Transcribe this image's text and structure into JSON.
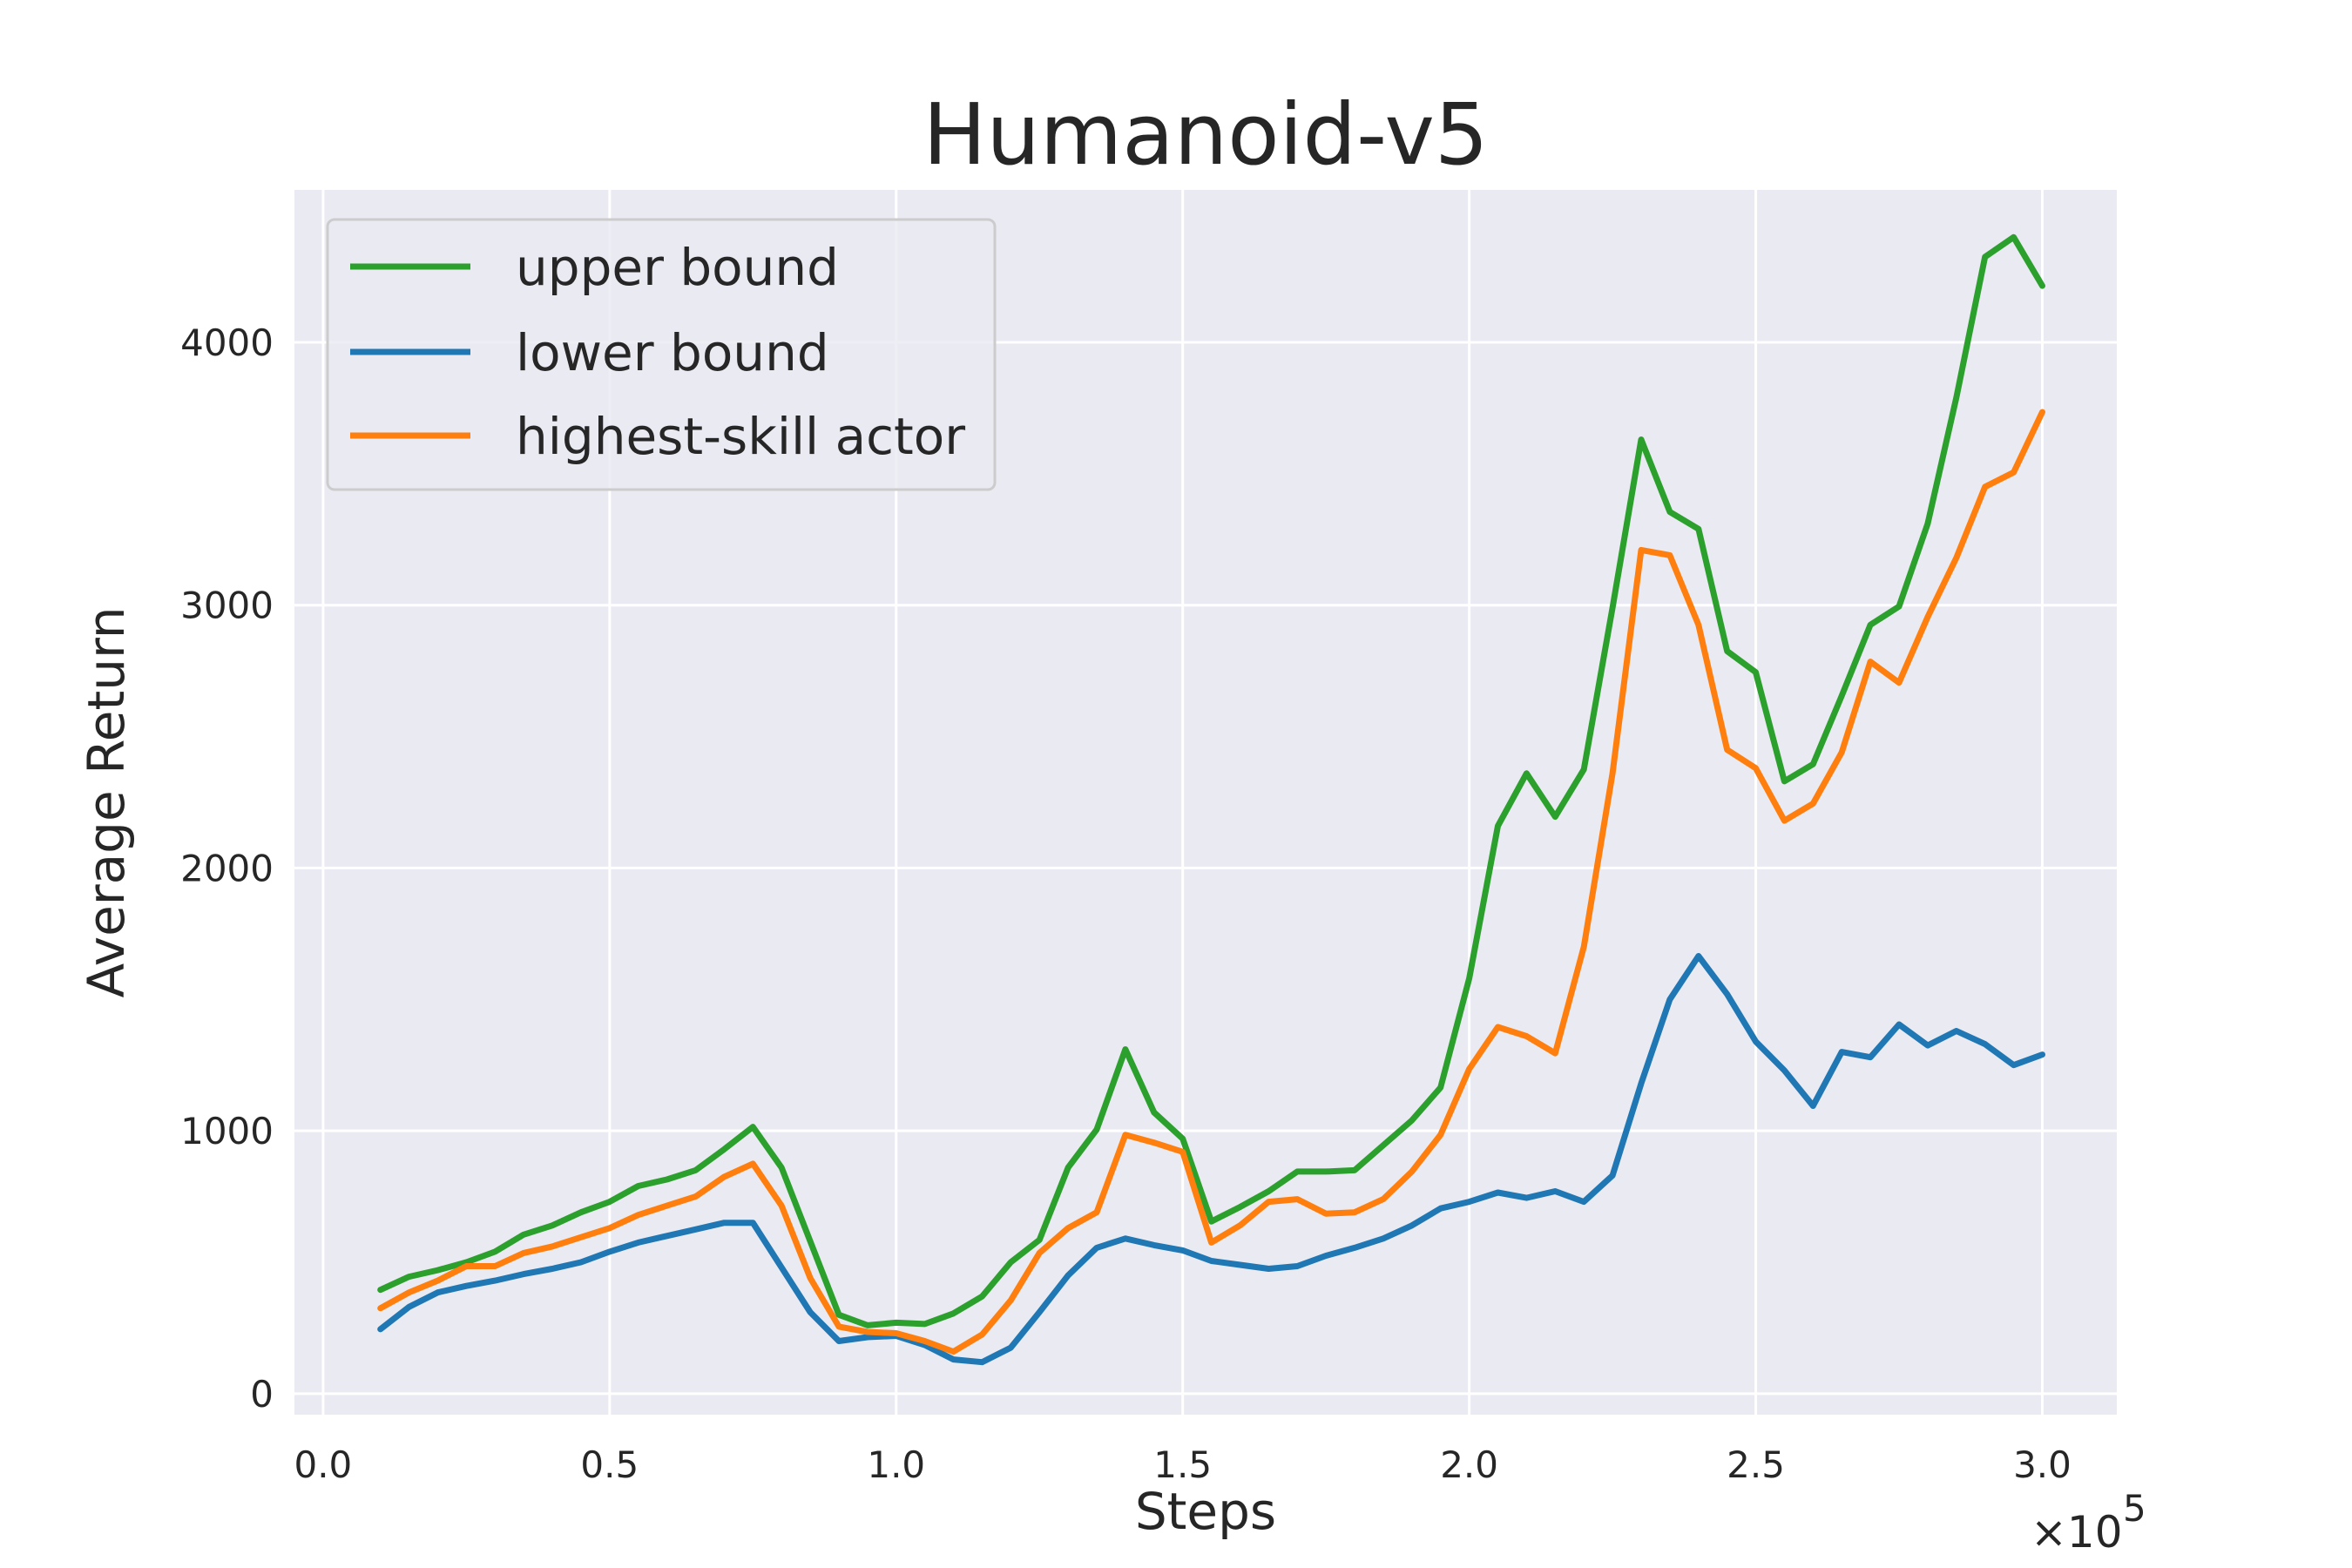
{
  "chart_data": {
    "type": "line",
    "title": "Humanoid-v5",
    "xlabel": "Steps",
    "ylabel": "Average Return",
    "x_offset_label": "×10",
    "x_offset_exponent": "5",
    "xlim": [
      -0.05,
      3.13
    ],
    "ylim": [
      -80,
      4580
    ],
    "xticks": [
      0.0,
      0.5,
      1.0,
      1.5,
      2.0,
      2.5,
      3.0
    ],
    "xtick_labels": [
      "0.0",
      "0.5",
      "1.0",
      "1.5",
      "2.0",
      "2.5",
      "3.0"
    ],
    "yticks": [
      0,
      1000,
      2000,
      3000,
      4000
    ],
    "ytick_labels": [
      "0",
      "1000",
      "2000",
      "3000",
      "4000"
    ],
    "grid": true,
    "legend_position": "upper-left",
    "x": [
      0.1,
      0.15,
      0.2,
      0.25,
      0.3,
      0.35,
      0.4,
      0.45,
      0.5,
      0.55,
      0.6,
      0.65,
      0.7,
      0.75,
      0.8,
      0.85,
      0.9,
      0.95,
      1.0,
      1.05,
      1.1,
      1.15,
      1.2,
      1.25,
      1.3,
      1.35,
      1.4,
      1.45,
      1.5,
      1.55,
      1.6,
      1.65,
      1.7,
      1.75,
      1.8,
      1.85,
      1.9,
      1.95,
      2.0,
      2.05,
      2.1,
      2.15,
      2.2,
      2.25,
      2.3,
      2.35,
      2.4,
      2.45,
      2.5,
      2.55,
      2.6,
      2.65,
      2.7,
      2.75,
      2.8,
      2.85,
      2.9,
      2.95,
      3.0
    ],
    "series": [
      {
        "name": "upper bound",
        "color": "#2ca02c",
        "values": [
          395,
          445,
          470,
          500,
          540,
          605,
          640,
          690,
          730,
          790,
          815,
          850,
          930,
          1015,
          860,
          580,
          300,
          260,
          270,
          265,
          305,
          370,
          500,
          585,
          860,
          1005,
          1310,
          1070,
          970,
          655,
          710,
          770,
          845,
          845,
          850,
          945,
          1040,
          1165,
          1580,
          2160,
          2360,
          2195,
          2375,
          2990,
          3630,
          3355,
          3290,
          2825,
          2745,
          2330,
          2395,
          2655,
          2925,
          2995,
          3310,
          3790,
          4325,
          4400,
          4215
        ]
      },
      {
        "name": "lower bound",
        "color": "#1f77b4",
        "values": [
          245,
          330,
          385,
          410,
          430,
          455,
          475,
          500,
          540,
          575,
          600,
          625,
          650,
          650,
          480,
          310,
          200,
          215,
          220,
          185,
          130,
          120,
          175,
          310,
          450,
          555,
          590,
          565,
          545,
          505,
          490,
          475,
          485,
          525,
          555,
          590,
          640,
          705,
          730,
          765,
          745,
          770,
          730,
          830,
          1180,
          1500,
          1665,
          1520,
          1340,
          1230,
          1095,
          1300,
          1280,
          1405,
          1325,
          1380,
          1330,
          1250,
          1290
        ]
      },
      {
        "name": "highest-skill actor",
        "color": "#ff7f0e",
        "values": [
          325,
          385,
          430,
          485,
          485,
          535,
          560,
          595,
          630,
          680,
          715,
          750,
          825,
          875,
          715,
          440,
          255,
          235,
          230,
          200,
          160,
          225,
          355,
          535,
          630,
          690,
          985,
          955,
          920,
          575,
          640,
          730,
          740,
          685,
          690,
          740,
          845,
          985,
          1235,
          1395,
          1360,
          1295,
          1700,
          2360,
          3210,
          3190,
          2925,
          2450,
          2380,
          2180,
          2245,
          2440,
          2785,
          2705,
          2955,
          3180,
          3450,
          3505,
          3735
        ]
      }
    ]
  }
}
